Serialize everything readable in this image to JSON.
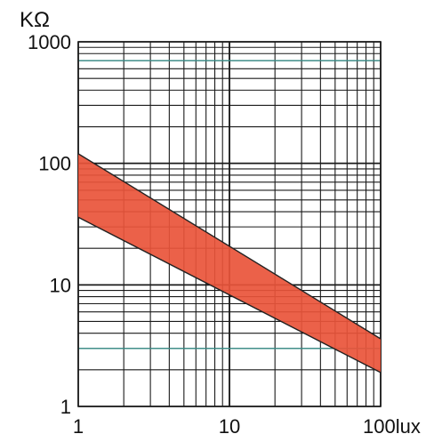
{
  "chart_data": {
    "type": "area",
    "title": "",
    "xlabel": "lux",
    "ylabel": "KΩ",
    "x_scale": "log",
    "y_scale": "log",
    "xlim": [
      1,
      100
    ],
    "ylim": [
      1,
      1000
    ],
    "grid": true,
    "x_ticks": [
      {
        "value": 1,
        "label": "1"
      },
      {
        "value": 10,
        "label": "10"
      },
      {
        "value": 100,
        "label": "100lux"
      }
    ],
    "y_ticks": [
      {
        "value": 1,
        "label": "1"
      },
      {
        "value": 10,
        "label": "10"
      },
      {
        "value": 100,
        "label": "100"
      },
      {
        "value": 1000,
        "label": "1000"
      }
    ],
    "y_unit_label": "KΩ",
    "band": {
      "upper": [
        {
          "x": 1,
          "y": 120
        },
        {
          "x": 100,
          "y": 3.6
        }
      ],
      "lower": [
        {
          "x": 1,
          "y": 36
        },
        {
          "x": 100,
          "y": 1.9
        }
      ],
      "fill_color": "#e9543a",
      "edge_color": "#222222"
    },
    "grid_color": "#1a1a1a",
    "highlight_grid_color": "#3a8f8a",
    "highlight_y_gridlines": [
      700,
      3
    ]
  }
}
